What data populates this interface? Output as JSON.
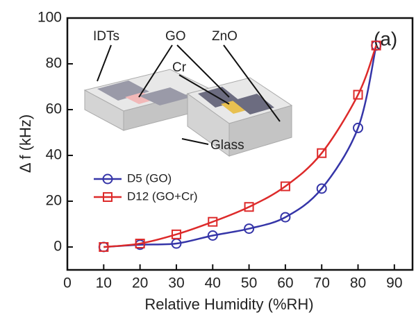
{
  "chart_data": {
    "type": "line",
    "xlabel": "Relative Humidity (%RH)",
    "ylabel": "Δ f (kHz)",
    "x": [
      10,
      20,
      30,
      40,
      50,
      60,
      70,
      80,
      85
    ],
    "series": [
      {
        "name": "D5 (GO)",
        "color": "#3535a8",
        "marker": "circle",
        "values": [
          0,
          1,
          1.5,
          5,
          8,
          13,
          25.5,
          52,
          88
        ]
      },
      {
        "name": "D12 (GO+Cr)",
        "color": "#dd2a2a",
        "marker": "square",
        "values": [
          0,
          1.5,
          5.5,
          11,
          17.5,
          26.5,
          41,
          66.5,
          88
        ]
      }
    ],
    "xlim": [
      0,
      95
    ],
    "xticks": [
      0,
      10,
      20,
      30,
      40,
      50,
      60,
      70,
      80,
      90
    ],
    "ylim": [
      -10,
      100
    ],
    "yticks": [
      0,
      20,
      40,
      60,
      80,
      100
    ],
    "legend": "left",
    "annotations": [
      "(a)",
      "IDTs",
      "GO",
      "ZnO",
      "Cr",
      "Glass"
    ]
  }
}
